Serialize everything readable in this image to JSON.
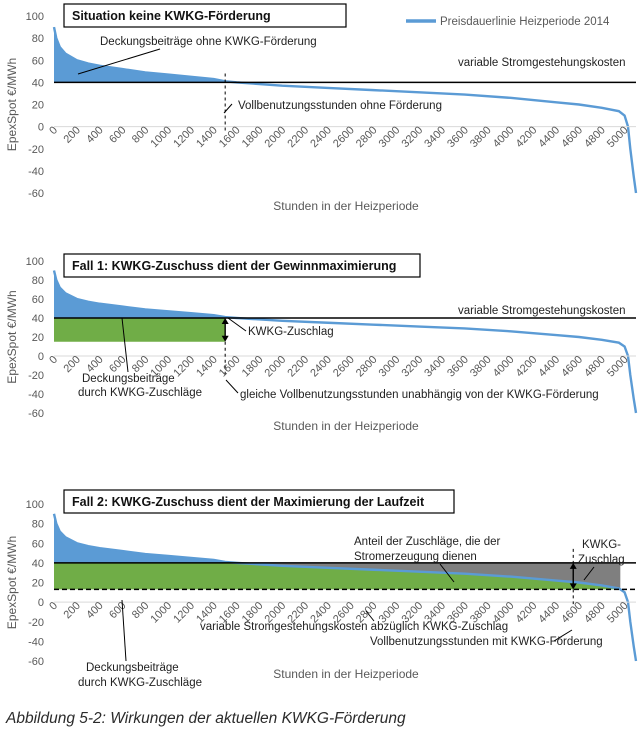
{
  "caption": "Abbildung 5-2: Wirkungen der aktuellen KWKG-Förderung",
  "colors": {
    "curve": "#5b9bd5",
    "green": "#70ad47",
    "gray": "#7f7f7f",
    "line": "#000000",
    "text": "#222222",
    "axis_text": "#595959"
  },
  "chart_data": [
    {
      "type": "area",
      "title": "Situation keine KWKG-Förderung",
      "xlabel": "Stunden in der Heizperiode",
      "ylabel": "EpexSpot €/MWh",
      "ylim": [
        -60,
        100
      ],
      "yticks": [
        100,
        80,
        60,
        40,
        20,
        0,
        -20,
        -40,
        -60
      ],
      "xlim": [
        0,
        5100
      ],
      "xticks": [
        0,
        200,
        400,
        600,
        800,
        1000,
        1200,
        1400,
        1600,
        1800,
        2000,
        2200,
        2400,
        2600,
        2800,
        3000,
        3200,
        3400,
        3600,
        3800,
        4000,
        4200,
        4400,
        4600,
        4800,
        5000
      ],
      "series": [
        {
          "name": "Preisdauerlinie Heizperiode 2014",
          "x": [
            0,
            20,
            50,
            100,
            200,
            300,
            400,
            600,
            800,
            1000,
            1200,
            1400,
            1500,
            1600,
            2000,
            2400,
            2800,
            3200,
            3600,
            4000,
            4200,
            4400,
            4600,
            4800,
            4950,
            5000,
            5030,
            5050,
            5080,
            5100
          ],
          "values": [
            90,
            80,
            72,
            66,
            60,
            57,
            55,
            52,
            49,
            47,
            45,
            43,
            41,
            40,
            37,
            35,
            33,
            31,
            29,
            26,
            24,
            22,
            20,
            17,
            14,
            10,
            0,
            -20,
            -45,
            -60
          ]
        }
      ],
      "reference_lines": [
        {
          "y": 40,
          "label": "variable Stromgestehungskosten"
        }
      ],
      "vertical_markers": [
        {
          "x": 1500,
          "label": "Vollbenutzungsstunden ohne Förderung"
        }
      ],
      "regions": [
        {
          "label": "Deckungsbeiträge ohne KWKG-Förderung"
        }
      ],
      "legend": "top-right"
    },
    {
      "type": "area",
      "title": "Fall 1: KWKG-Zuschuss dient der Gewinnmaximierung",
      "xlabel": "Stunden in der Heizperiode",
      "ylabel": "EpexSpot €/MWh",
      "ylim": [
        -60,
        100
      ],
      "yticks": [
        100,
        80,
        60,
        40,
        20,
        0,
        -20,
        -40,
        -60
      ],
      "xlim": [
        0,
        5100
      ],
      "xticks": [
        0,
        200,
        400,
        600,
        800,
        1000,
        1200,
        1400,
        1600,
        1800,
        2000,
        2200,
        2400,
        2600,
        2800,
        3000,
        3200,
        3400,
        3600,
        3800,
        4000,
        4200,
        4400,
        4600,
        4800,
        5000
      ],
      "reference_lines": [
        {
          "y": 40,
          "label": "variable Stromgestehungskosten"
        }
      ],
      "bands": [
        {
          "from_y": 15,
          "to_y": 40,
          "x_from": 0,
          "x_to": 1500,
          "label": "Deckungsbeiträge durch KWKG-Zuschläge"
        }
      ],
      "arrows": [
        {
          "x": 1500,
          "y_from": 40,
          "y_to": 15,
          "label": "KWKG-Zuschlag"
        }
      ],
      "vertical_markers": [
        {
          "x": 1500,
          "label": "gleiche Vollbenutzungsstunden unabhängig von der KWKG-Förderung"
        }
      ]
    },
    {
      "type": "area",
      "title": "Fall 2: KWKG-Zuschuss dient der Maximierung der Laufzeit",
      "xlabel": "Stunden in der Heizperiode",
      "ylabel": "EpexSpot €/MWh",
      "ylim": [
        -60,
        100
      ],
      "yticks": [
        100,
        80,
        60,
        40,
        20,
        0,
        -20,
        -40,
        -60
      ],
      "xlim": [
        0,
        5100
      ],
      "xticks": [
        0,
        200,
        400,
        600,
        800,
        1000,
        1200,
        1400,
        1600,
        1800,
        2000,
        2200,
        2400,
        2600,
        2800,
        3000,
        3200,
        3400,
        3600,
        3800,
        4000,
        4200,
        4400,
        4600,
        4800,
        5000
      ],
      "reference_lines": [
        {
          "y": 40,
          "label": ""
        },
        {
          "y": 13,
          "dashed": true,
          "label": "variable Stromgestehungskosten abzüglich KWKG-Zuschlag"
        }
      ],
      "bands": [
        {
          "from_y": 13,
          "to_y": 40,
          "x_from": 0,
          "x_to": 4550,
          "label": "Deckungsbeiträge durch KWKG-Zuschläge"
        }
      ],
      "gray_region": {
        "label": "Anteil der Zuschläge, die der Stromerzeugung dienen"
      },
      "arrows": [
        {
          "x": 4550,
          "y_from": 40,
          "y_to": 13,
          "label": "KWKG-Zuschlag"
        }
      ],
      "vertical_markers": [
        {
          "x": 4550,
          "label": "Vollbenutzungsstunden mit KWKG-Förderung"
        }
      ]
    }
  ]
}
